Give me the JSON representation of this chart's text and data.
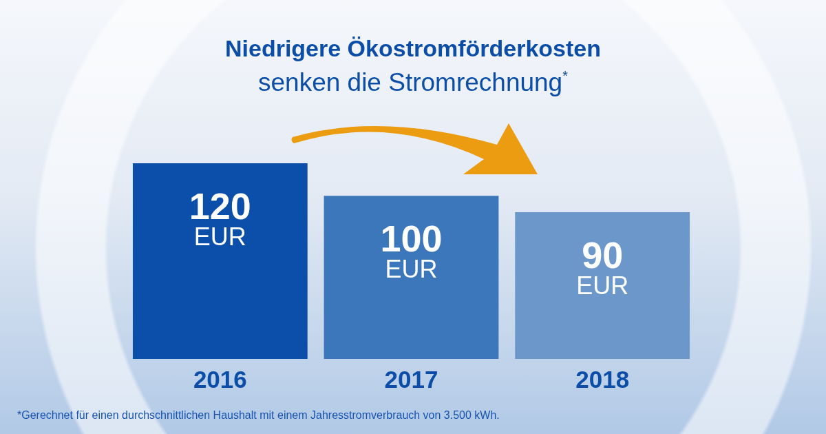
{
  "chart_data": {
    "type": "bar",
    "title": "Niedrigere Ökostromförderkosten",
    "subtitle": "senken die Stromrechnung$^{*}$",
    "categories": [
      "2016",
      "2017",
      "2018"
    ],
    "values": [
      120,
      100,
      90
    ],
    "colors": [
      "#0b4faa",
      "#3c77bc",
      "#6b97cb"
    ],
    "value_labels": [
      "120\nEUR",
      "100\nEUR",
      "90\nEUR"
    ],
    "tick_labels": "x",
    "annotations": [
      "*Gerechnet für einen durchschnittlichen Haushalt mit einem Jahresstromverbrauch von 3.500 kWh."
    ]
  }
}
